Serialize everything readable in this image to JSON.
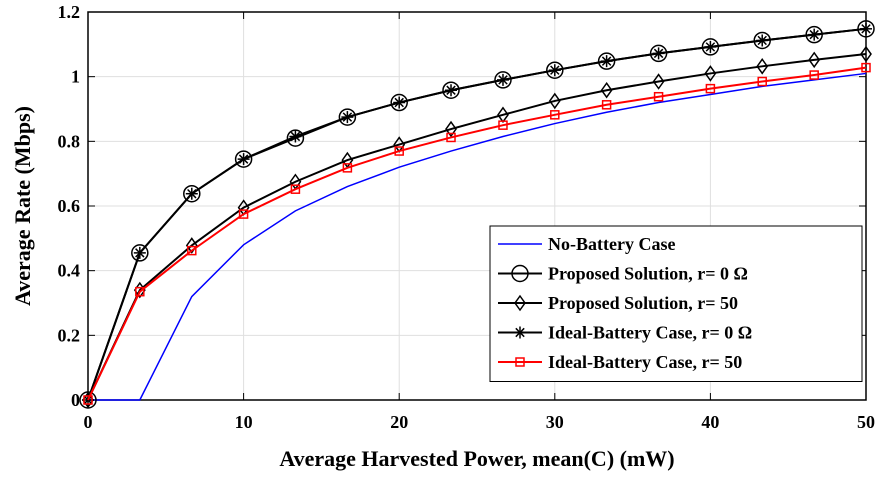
{
  "chart_data": {
    "type": "line",
    "xlabel": "Average Harvested Power, mean(C) (mW)",
    "ylabel": "Average Rate (Mbps)",
    "xlim": [
      0,
      50
    ],
    "ylim": [
      0,
      1.2
    ],
    "xticks": [
      "0",
      "10",
      "20",
      "30",
      "40",
      "50"
    ],
    "yticks": [
      "0",
      "0.2",
      "0.4",
      "0.6",
      "0.8",
      "1",
      "1.2"
    ],
    "grid": true,
    "legend_position": "bottom-right",
    "x": [
      0,
      3.33,
      6.67,
      10,
      13.33,
      16.67,
      20,
      23.33,
      26.67,
      30,
      33.33,
      36.67,
      40,
      43.33,
      46.67,
      50
    ],
    "series": [
      {
        "name": "No-Battery Case",
        "color": "#0000ff",
        "marker": "none",
        "values": [
          0,
          0,
          0.32,
          0.48,
          0.585,
          0.66,
          0.72,
          0.77,
          0.815,
          0.855,
          0.89,
          0.92,
          0.945,
          0.97,
          0.99,
          1.01
        ]
      },
      {
        "name": "Proposed Solution, r= 0 Ω",
        "color": "#000000",
        "marker": "circle",
        "values": [
          0,
          0.455,
          0.638,
          0.745,
          0.81,
          0.875,
          0.92,
          0.958,
          0.99,
          1.02,
          1.048,
          1.072,
          1.092,
          1.112,
          1.13,
          1.148
        ]
      },
      {
        "name": "Proposed Solution, r= 50",
        "color": "#000000",
        "marker": "diamond",
        "values": [
          0,
          0.34,
          0.478,
          0.595,
          0.675,
          0.742,
          0.79,
          0.838,
          0.882,
          0.925,
          0.958,
          0.985,
          1.01,
          1.032,
          1.052,
          1.07
        ]
      },
      {
        "name": "Ideal-Battery Case, r= 0 Ω",
        "color": "#000000",
        "marker": "asterisk",
        "values": [
          0,
          0.455,
          0.638,
          0.745,
          0.815,
          0.875,
          0.92,
          0.958,
          0.99,
          1.02,
          1.048,
          1.072,
          1.092,
          1.112,
          1.13,
          1.148
        ]
      },
      {
        "name": "Ideal-Battery Case, r= 50",
        "color": "#ff0000",
        "marker": "square",
        "values": [
          0,
          0.335,
          0.462,
          0.575,
          0.652,
          0.718,
          0.77,
          0.812,
          0.85,
          0.882,
          0.913,
          0.938,
          0.963,
          0.985,
          1.005,
          1.028
        ]
      }
    ]
  }
}
